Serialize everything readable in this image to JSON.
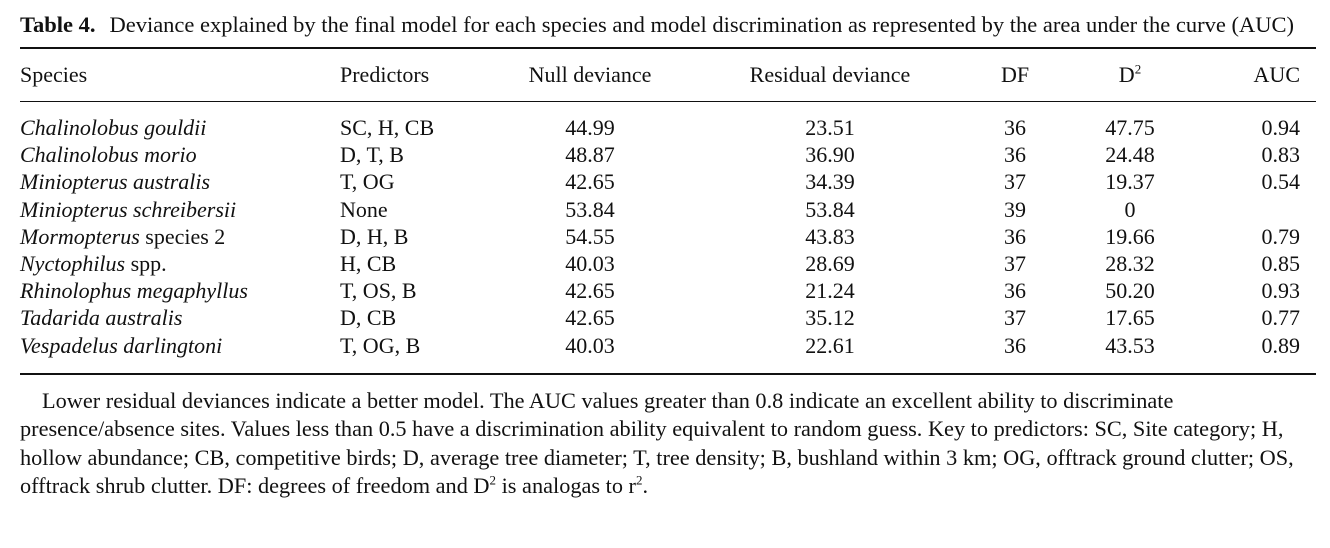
{
  "caption": {
    "number": "Table 4.",
    "text": "Deviance explained by the final model for each species and model discrimination as represented by the area under the curve (AUC)"
  },
  "columns": {
    "species": "Species",
    "predictors": "Predictors",
    "null_deviance": "Null deviance",
    "residual_deviance": "Residual deviance",
    "df": "DF",
    "d2": "D",
    "d2_sup": "2",
    "auc": "AUC"
  },
  "rows": [
    {
      "italic": "Chalinolobus gouldii",
      "plain": "",
      "predictors": "SC, H, CB",
      "null": "44.99",
      "residual": "23.51",
      "df": "36",
      "d2": "47.75",
      "auc": "0.94"
    },
    {
      "italic": "Chalinolobus morio",
      "plain": "",
      "predictors": "D, T, B",
      "null": "48.87",
      "residual": "36.90",
      "df": "36",
      "d2": "24.48",
      "auc": "0.83"
    },
    {
      "italic": "Miniopterus australis",
      "plain": "",
      "predictors": "T, OG",
      "null": "42.65",
      "residual": "34.39",
      "df": "37",
      "d2": "19.37",
      "auc": "0.54"
    },
    {
      "italic": "Miniopterus schreibersii",
      "plain": "",
      "predictors": "None",
      "null": "53.84",
      "residual": "53.84",
      "df": "39",
      "d2": "0",
      "auc": ""
    },
    {
      "italic": "Mormopterus",
      "plain": " species 2",
      "predictors": "D, H, B",
      "null": "54.55",
      "residual": "43.83",
      "df": "36",
      "d2": "19.66",
      "auc": "0.79"
    },
    {
      "italic": "Nyctophilus",
      "plain": " spp.",
      "predictors": "H, CB",
      "null": "40.03",
      "residual": "28.69",
      "df": "37",
      "d2": "28.32",
      "auc": "0.85"
    },
    {
      "italic": "Rhinolophus megaphyllus",
      "plain": "",
      "predictors": "T, OS, B",
      "null": "42.65",
      "residual": "21.24",
      "df": "36",
      "d2": "50.20",
      "auc": "0.93"
    },
    {
      "italic": "Tadarida australis",
      "plain": "",
      "predictors": "D, CB",
      "null": "42.65",
      "residual": "35.12",
      "df": "37",
      "d2": "17.65",
      "auc": "0.77"
    },
    {
      "italic": "Vespadelus darlingtoni",
      "plain": "",
      "predictors": "T, OG, B",
      "null": "40.03",
      "residual": "22.61",
      "df": "36",
      "d2": "43.53",
      "auc": "0.89"
    }
  ],
  "note": {
    "part1": "Lower residual deviances indicate a better model. The AUC values greater than 0.8 indicate an excellent ability to discriminate presence/absence sites. Values less than 0.5 have a discrimination ability equivalent to random guess. Key to predictors: SC, Site category; H, hollow abundance; CB, competitive birds; D, average tree diameter; T, tree density; B, bushland within 3 km; OG, offtrack ground clutter; OS, offtrack shrub clutter. DF: degrees of freedom and D",
    "sup1": "2",
    "part2": " is analogas to r",
    "sup2": "2",
    "part3": "."
  }
}
